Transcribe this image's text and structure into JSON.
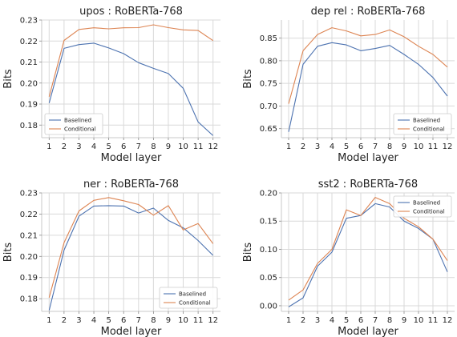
{
  "colors": {
    "baselined": "#4c72b0",
    "conditional": "#dd8452",
    "grid": "#d9d9d9",
    "axis": "#c8c8c8"
  },
  "chart_data": [
    {
      "type": "line",
      "title": "upos : RoBERTa-768",
      "xlabel": "Model layer",
      "ylabel": "Bits",
      "x": [
        1,
        2,
        3,
        4,
        5,
        6,
        7,
        8,
        9,
        10,
        11,
        12
      ],
      "ylim": [
        0.174,
        0.23
      ],
      "yticks": [
        0.18,
        0.19,
        0.2,
        0.21,
        0.22,
        0.23
      ],
      "yticklabels": [
        "0.18",
        "0.19",
        "0.20",
        "0.21",
        "0.22",
        "0.23"
      ],
      "grid": true,
      "legend": "bottom-left",
      "series": [
        {
          "name": "Baselined",
          "values": [
            0.1905,
            0.2165,
            0.2183,
            0.219,
            0.2167,
            0.214,
            0.2097,
            0.207,
            0.2045,
            0.1975,
            0.1815,
            0.175
          ]
        },
        {
          "name": "Conditional",
          "values": [
            0.1935,
            0.2203,
            0.2255,
            0.2263,
            0.2258,
            0.2263,
            0.2264,
            0.2277,
            0.2264,
            0.2253,
            0.225,
            0.2202
          ]
        }
      ]
    },
    {
      "type": "line",
      "title": "dep rel : RoBERTa-768",
      "xlabel": "Model layer",
      "ylabel": "Bits",
      "x": [
        1,
        2,
        3,
        4,
        5,
        6,
        7,
        8,
        9,
        10,
        11,
        12
      ],
      "ylim": [
        0.63,
        0.89
      ],
      "yticks": [
        0.65,
        0.7,
        0.75,
        0.8,
        0.85
      ],
      "yticklabels": [
        "0.65",
        "0.70",
        "0.75",
        "0.80",
        "0.85"
      ],
      "grid": true,
      "legend": "bottom-right",
      "series": [
        {
          "name": "Baselined",
          "values": [
            0.643,
            0.792,
            0.832,
            0.84,
            0.835,
            0.822,
            0.827,
            0.834,
            0.814,
            0.792,
            0.763,
            0.722
          ]
        },
        {
          "name": "Conditional",
          "values": [
            0.705,
            0.822,
            0.858,
            0.873,
            0.866,
            0.855,
            0.858,
            0.868,
            0.853,
            0.832,
            0.814,
            0.786
          ]
        }
      ]
    },
    {
      "type": "line",
      "title": "ner : RoBERTa-768",
      "xlabel": "Model layer",
      "ylabel": "Bits",
      "x": [
        1,
        2,
        3,
        4,
        5,
        6,
        7,
        8,
        9,
        10,
        11,
        12
      ],
      "ylim": [
        0.174,
        0.23
      ],
      "yticks": [
        0.18,
        0.19,
        0.2,
        0.21,
        0.22,
        0.23
      ],
      "yticklabels": [
        "0.18",
        "0.19",
        "0.20",
        "0.21",
        "0.22",
        "0.23"
      ],
      "grid": true,
      "legend": "bottom-right",
      "series": [
        {
          "name": "Baselined",
          "values": [
            0.1745,
            0.203,
            0.219,
            0.2238,
            0.224,
            0.2238,
            0.2205,
            0.2228,
            0.217,
            0.2135,
            0.2075,
            0.2005
          ]
        },
        {
          "name": "Conditional",
          "values": [
            0.1805,
            0.2065,
            0.2215,
            0.2265,
            0.2278,
            0.2263,
            0.2245,
            0.2195,
            0.224,
            0.2125,
            0.2155,
            0.206
          ]
        }
      ]
    },
    {
      "type": "line",
      "title": "sst2 : RoBERTa-768",
      "xlabel": "Model layer",
      "ylabel": "Bits",
      "x": [
        1,
        2,
        3,
        4,
        5,
        6,
        7,
        8,
        9,
        10,
        11,
        12
      ],
      "ylim": [
        -0.01,
        0.2
      ],
      "yticks": [
        0.0,
        0.05,
        0.1,
        0.15,
        0.2
      ],
      "yticklabels": [
        "0.00",
        "0.05",
        "0.10",
        "0.15",
        "0.20"
      ],
      "grid": true,
      "legend": "top-right",
      "series": [
        {
          "name": "Baselined",
          "values": [
            -0.002,
            0.014,
            0.07,
            0.095,
            0.155,
            0.16,
            0.181,
            0.175,
            0.15,
            0.137,
            0.118,
            0.06
          ]
        },
        {
          "name": "Conditional",
          "values": [
            0.01,
            0.028,
            0.075,
            0.1,
            0.17,
            0.16,
            0.192,
            0.181,
            0.155,
            0.14,
            0.118,
            0.08
          ]
        }
      ]
    }
  ]
}
